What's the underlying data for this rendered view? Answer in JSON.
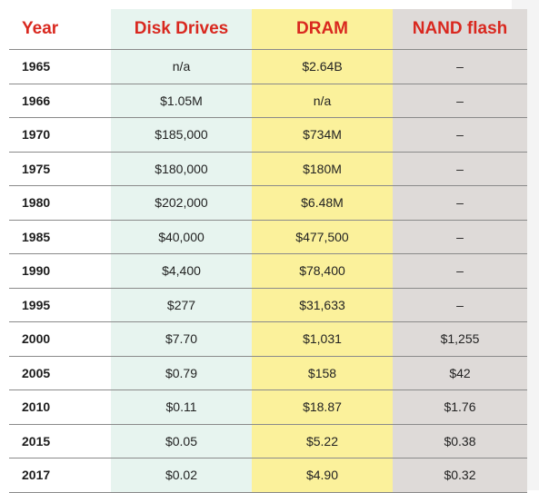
{
  "table": {
    "headers": [
      "Year",
      "Disk Drives",
      "DRAM",
      "NAND flash"
    ],
    "rows": [
      [
        "1965",
        "n/a",
        "$2.64B",
        "–"
      ],
      [
        "1966",
        "$1.05M",
        "n/a",
        "–"
      ],
      [
        "1970",
        "$185,000",
        "$734M",
        "–"
      ],
      [
        "1975",
        "$180,000",
        "$180M",
        "–"
      ],
      [
        "1980",
        "$202,000",
        "$6.48M",
        "–"
      ],
      [
        "1985",
        "$40,000",
        "$477,500",
        "–"
      ],
      [
        "1990",
        "$4,400",
        "$78,400",
        "–"
      ],
      [
        "1995",
        "$277",
        "$31,633",
        "–"
      ],
      [
        "2000",
        "$7.70",
        "$1,031",
        "$1,255"
      ],
      [
        "2005",
        "$0.79",
        "$158",
        "$42"
      ],
      [
        "2010",
        "$0.11",
        "$18.87",
        "$1.76"
      ],
      [
        "2015",
        "$0.05",
        "$5.22",
        "$0.38"
      ],
      [
        "2017",
        "$0.02",
        "$4.90",
        "$0.32"
      ]
    ]
  },
  "colors": {
    "header_text": "#d9281f",
    "disk_column_bg": "#e7f4ef",
    "dram_column_bg": "#fbf19b",
    "nand_column_bg": "#dedad8"
  }
}
